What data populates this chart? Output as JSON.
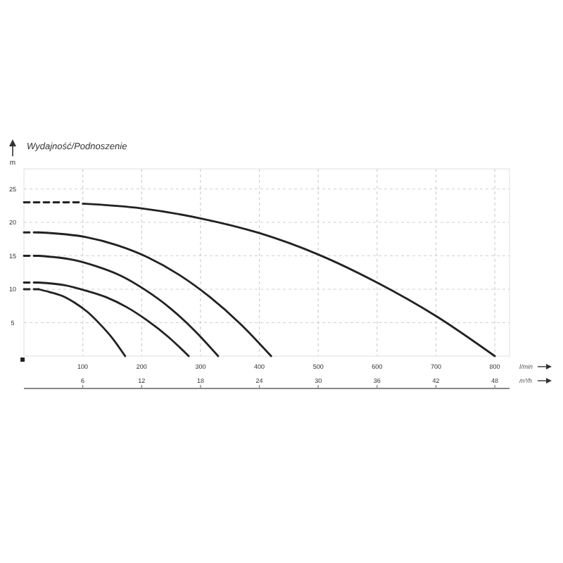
{
  "chart_data": {
    "type": "line",
    "title": "Wydajność/Podnoszenie",
    "ylabel": "m",
    "xlabel": "l/min",
    "x2label": "m³/h",
    "xlim": [
      0,
      825
    ],
    "xticks": [
      100,
      200,
      300,
      400,
      500,
      600,
      700,
      800
    ],
    "x2lim": [
      0,
      49.5
    ],
    "x2ticks": [
      6,
      12,
      18,
      24,
      30,
      36,
      42,
      48
    ],
    "ylim": [
      0,
      28
    ],
    "yticks": [
      5,
      10,
      15,
      20,
      25
    ],
    "grid": true,
    "marker": "none",
    "series": [
      {
        "color": "#222222",
        "line_style": "dashed",
        "x": [
          0,
          100
        ],
        "values": [
          23,
          23
        ]
      },
      {
        "color": "#222222",
        "line_style": "solid",
        "x": [
          100,
          200,
          300,
          400,
          500,
          600,
          700,
          800
        ],
        "values": [
          22.8,
          22.1,
          20.6,
          18.4,
          15.2,
          11.0,
          6.0,
          0
        ]
      },
      {
        "color": "#222222",
        "line_style": "dashed",
        "x": [
          0,
          25
        ],
        "values": [
          18.5,
          18.5
        ]
      },
      {
        "color": "#222222",
        "line_style": "solid",
        "x": [
          25,
          105,
          158,
          210,
          263,
          315,
          368,
          420
        ],
        "values": [
          18.5,
          17.8,
          16.6,
          14.8,
          12.2,
          8.9,
          4.8,
          0
        ]
      },
      {
        "color": "#222222",
        "line_style": "dashed",
        "x": [
          0,
          25
        ],
        "values": [
          15,
          15
        ]
      },
      {
        "color": "#222222",
        "line_style": "solid",
        "x": [
          25,
          83,
          124,
          165,
          206,
          248,
          289,
          330
        ],
        "values": [
          15,
          14.4,
          13.4,
          12.0,
          9.9,
          7.2,
          3.9,
          0
        ]
      },
      {
        "color": "#222222",
        "line_style": "dashed",
        "x": [
          0,
          25
        ],
        "values": [
          11,
          11
        ]
      },
      {
        "color": "#222222",
        "line_style": "solid",
        "x": [
          25,
          70,
          105,
          140,
          175,
          210,
          245,
          280
        ],
        "values": [
          11,
          10.6,
          9.8,
          8.8,
          7.3,
          5.3,
          2.9,
          0
        ]
      },
      {
        "color": "#222222",
        "line_style": "dashed",
        "x": [
          0,
          25
        ],
        "values": [
          10,
          10
        ]
      },
      {
        "color": "#222222",
        "line_style": "solid",
        "x": [
          25,
          43,
          65,
          86,
          108,
          129,
          151,
          172
        ],
        "values": [
          10,
          9.6,
          9.0,
          8.0,
          6.6,
          4.8,
          2.6,
          0
        ]
      }
    ]
  }
}
